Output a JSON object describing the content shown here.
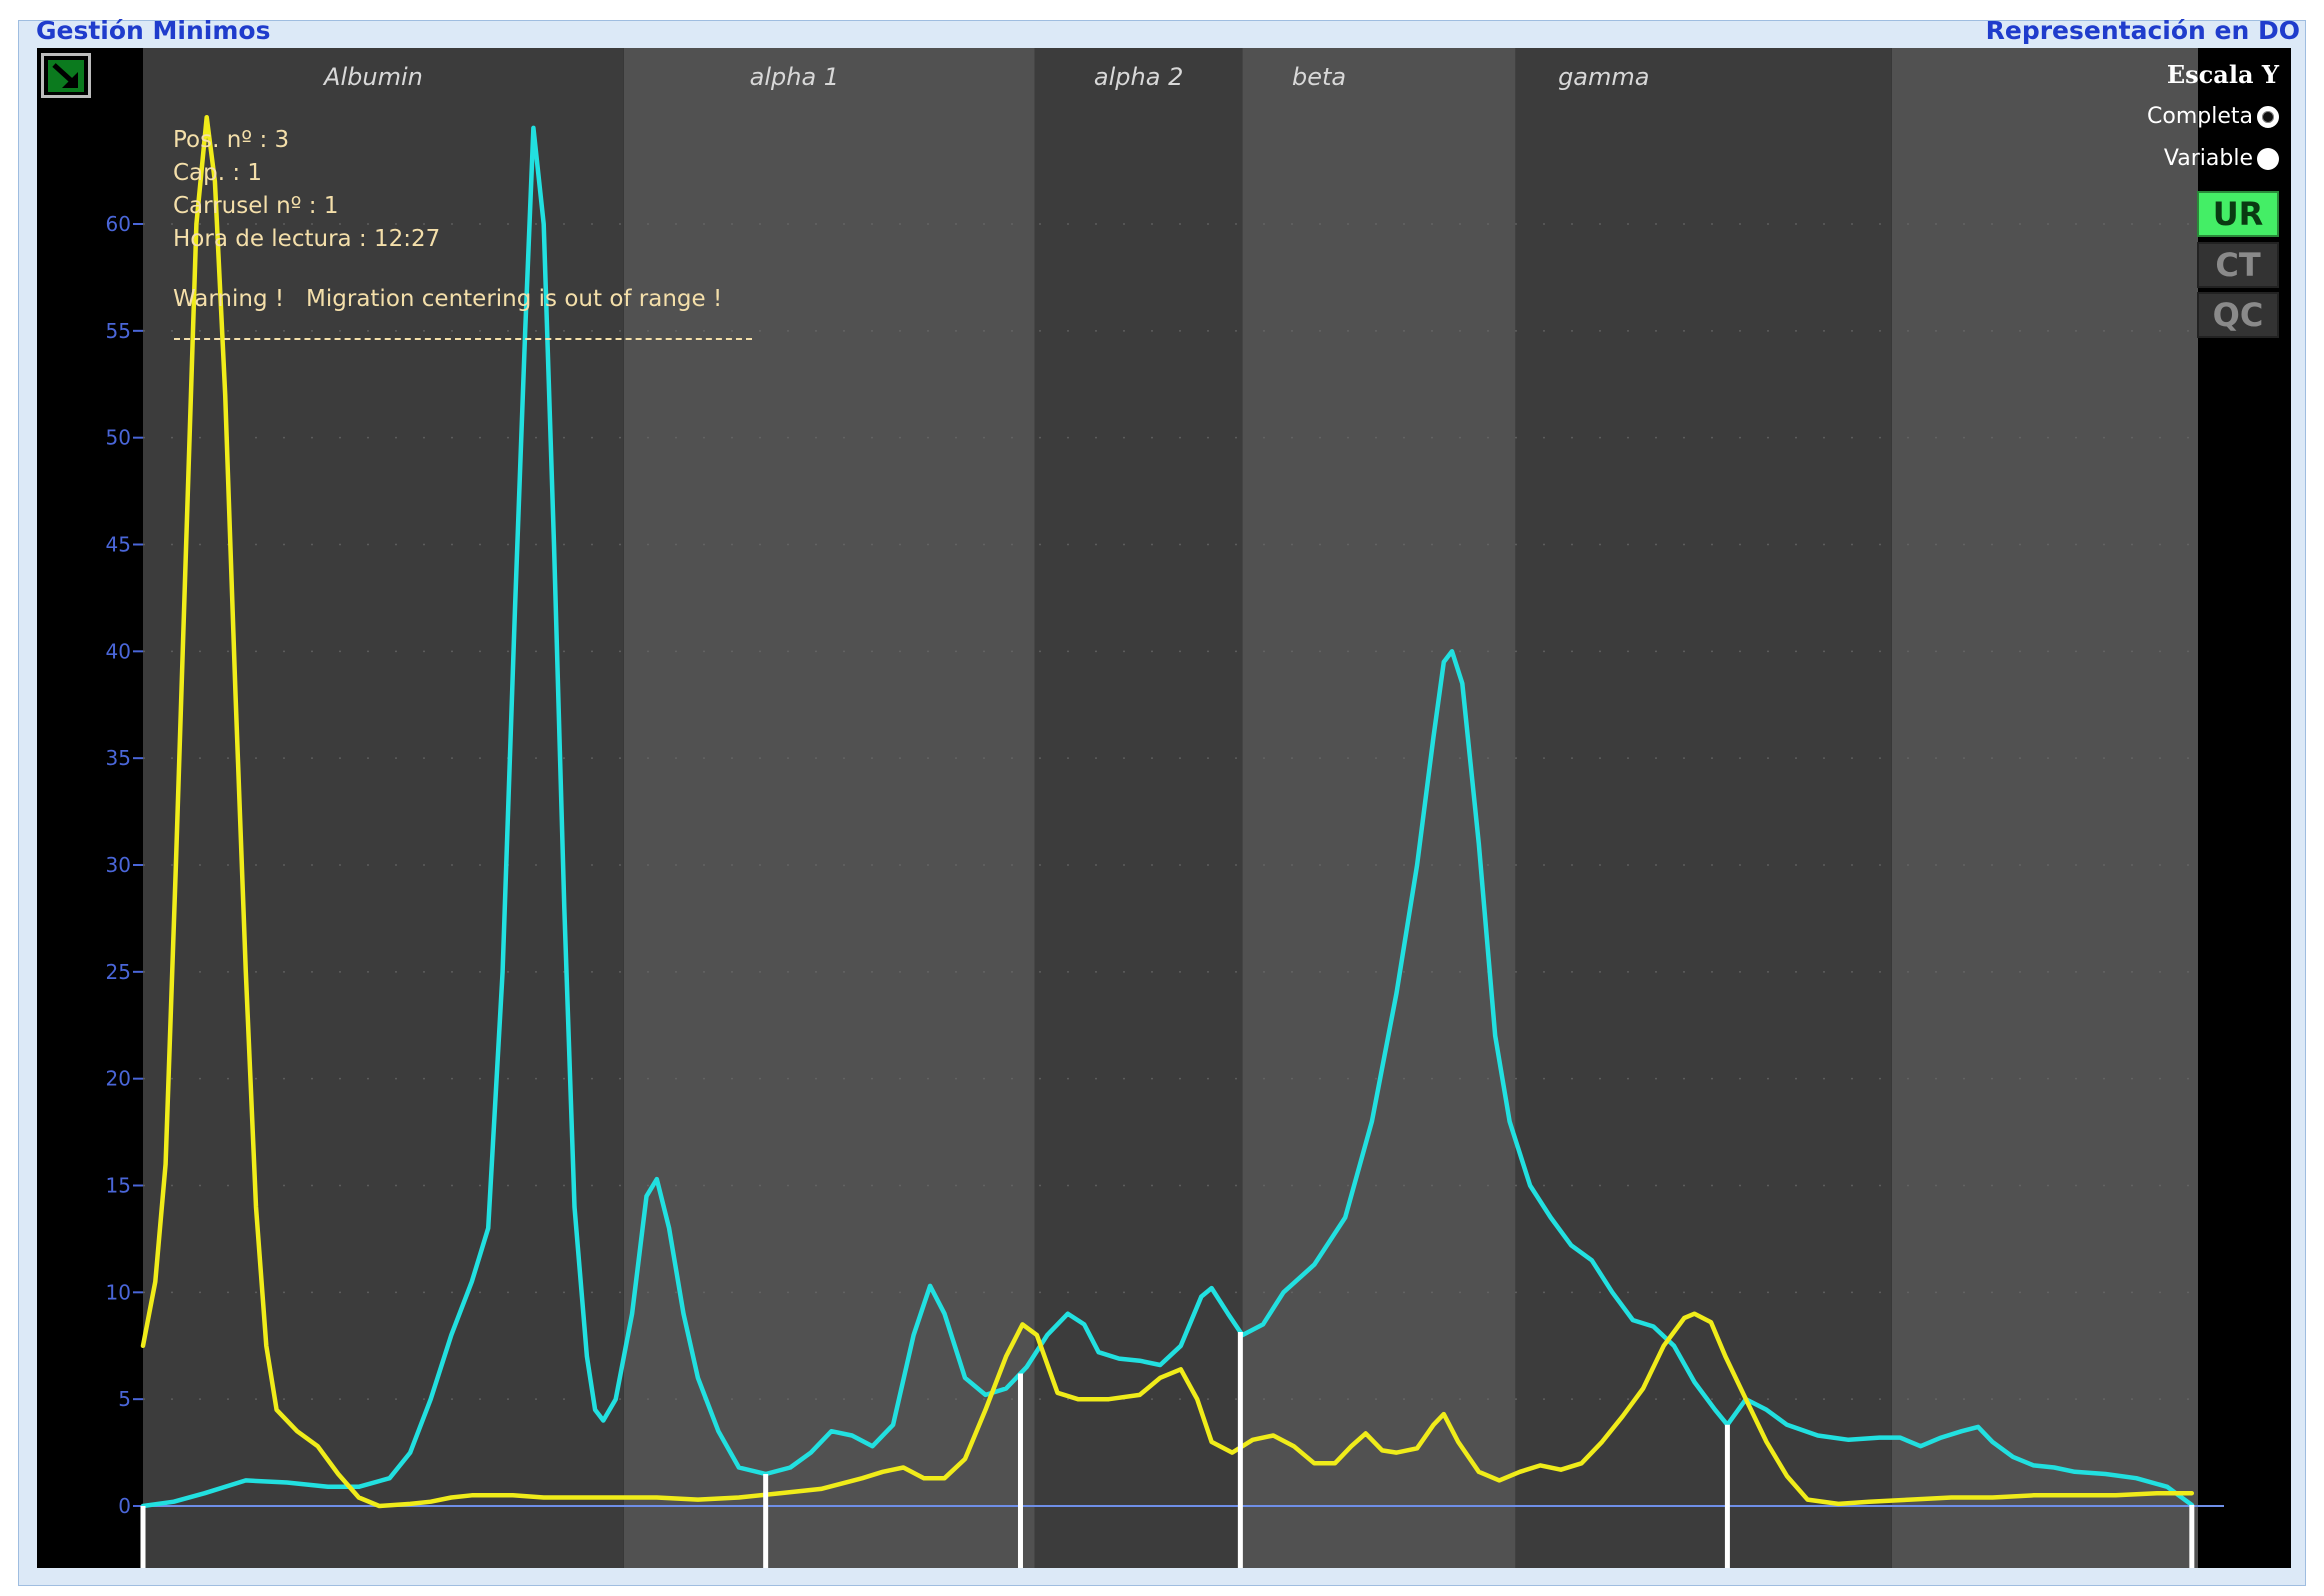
{
  "header": {
    "left_title": "Gestión Minimos",
    "right_title": "Representación en DO"
  },
  "info": {
    "pos": "Pos. nº : 3",
    "cap": "Cap. : 1",
    "carrusel": "Carrusel nº : 1",
    "hora": "Hora de lectura : 12:27",
    "warning": "Warning !   Migration centering is out of range !"
  },
  "scale_panel": {
    "title": "Escala Y",
    "options": [
      {
        "label": "Completa",
        "selected": true
      },
      {
        "label": "Variable",
        "selected": false
      }
    ]
  },
  "mode_buttons": [
    {
      "label": "UR",
      "active": true,
      "color": "#44ee66"
    },
    {
      "label": "CT",
      "active": false,
      "color": "#333333"
    },
    {
      "label": "QC",
      "active": false,
      "color": "#333333"
    }
  ],
  "colors": {
    "background": "#000000",
    "band_dark": "#3c3c3c",
    "band_light": "#515151",
    "series_cyan": "#22e0e0",
    "series_yellow": "#f0ec1a",
    "axis_text": "#4a66d8",
    "baseline": "#6f8fe8",
    "fraction_marker": "#ffffff",
    "header_text": "#1f3ccc"
  },
  "chart_data": {
    "type": "line",
    "ylabel": "",
    "xlabel": "",
    "xlim": [
      0,
      100
    ],
    "ylim": [
      0,
      65
    ],
    "yticks": [
      0,
      5,
      10,
      15,
      20,
      25,
      30,
      35,
      40,
      45,
      50,
      55,
      60
    ],
    "ytick_labels": [
      "0",
      "5",
      "10",
      "15",
      "20",
      "25",
      "30",
      "35",
      "40",
      "45",
      "50",
      "55",
      "60"
    ],
    "bands": [
      {
        "label": "Albumin",
        "x0": 0,
        "x1": 23.4,
        "shade": "dark"
      },
      {
        "label": "alpha 1",
        "x0": 23.4,
        "x1": 43.4,
        "shade": "light"
      },
      {
        "label": "alpha 2",
        "x0": 43.4,
        "x1": 53.5,
        "shade": "dark"
      },
      {
        "label": "beta",
        "x0": 53.5,
        "x1": 66.8,
        "shade": "light"
      },
      {
        "label": "gamma",
        "x0": 66.8,
        "x1": 85.1,
        "shade": "dark"
      },
      {
        "label": "",
        "x0": 85.1,
        "x1": 100,
        "shade": "light"
      }
    ],
    "fraction_separators": [
      0,
      30.3,
      42.7,
      53.4,
      77.1,
      99.7
    ],
    "series": [
      {
        "color": "#22e0e0",
        "points": [
          [
            0,
            0
          ],
          [
            1.5,
            0.2
          ],
          [
            3,
            0.6
          ],
          [
            5,
            1.2
          ],
          [
            7,
            1.1
          ],
          [
            9,
            0.9
          ],
          [
            10.5,
            0.9
          ],
          [
            12,
            1.3
          ],
          [
            13,
            2.5
          ],
          [
            14,
            5
          ],
          [
            15,
            8
          ],
          [
            16,
            10.5
          ],
          [
            16.8,
            13
          ],
          [
            17.5,
            25
          ],
          [
            18.1,
            42
          ],
          [
            18.6,
            55
          ],
          [
            19,
            64.5
          ],
          [
            19.5,
            60
          ],
          [
            20,
            45
          ],
          [
            20.5,
            28
          ],
          [
            21,
            14
          ],
          [
            21.6,
            7
          ],
          [
            22,
            4.5
          ],
          [
            22.4,
            4
          ],
          [
            23,
            5
          ],
          [
            23.8,
            9
          ],
          [
            24.5,
            14.5
          ],
          [
            25,
            15.3
          ],
          [
            25.6,
            13
          ],
          [
            26.3,
            9
          ],
          [
            27,
            6
          ],
          [
            28,
            3.5
          ],
          [
            29,
            1.8
          ],
          [
            30.3,
            1.5
          ],
          [
            31.5,
            1.8
          ],
          [
            32.5,
            2.5
          ],
          [
            33.5,
            3.5
          ],
          [
            34.5,
            3.3
          ],
          [
            35.5,
            2.8
          ],
          [
            36.5,
            3.8
          ],
          [
            37.5,
            8
          ],
          [
            38.3,
            10.3
          ],
          [
            39,
            9
          ],
          [
            40,
            6
          ],
          [
            41,
            5.2
          ],
          [
            42,
            5.5
          ],
          [
            43,
            6.5
          ],
          [
            44,
            8
          ],
          [
            45,
            9
          ],
          [
            45.8,
            8.5
          ],
          [
            46.5,
            7.2
          ],
          [
            47.5,
            6.9
          ],
          [
            48.5,
            6.8
          ],
          [
            49.5,
            6.6
          ],
          [
            50.5,
            7.5
          ],
          [
            51.5,
            9.8
          ],
          [
            52,
            10.2
          ],
          [
            52.8,
            9
          ],
          [
            53.5,
            8
          ],
          [
            54.5,
            8.5
          ],
          [
            55.5,
            10
          ],
          [
            57,
            11.3
          ],
          [
            58.5,
            13.5
          ],
          [
            59.8,
            18
          ],
          [
            61,
            24
          ],
          [
            62,
            30
          ],
          [
            62.8,
            36
          ],
          [
            63.3,
            39.5
          ],
          [
            63.7,
            40
          ],
          [
            64.2,
            38.5
          ],
          [
            65,
            31
          ],
          [
            65.8,
            22
          ],
          [
            66.5,
            18
          ],
          [
            67.5,
            15
          ],
          [
            68.5,
            13.5
          ],
          [
            69.5,
            12.2
          ],
          [
            70.5,
            11.5
          ],
          [
            71.5,
            10
          ],
          [
            72.5,
            8.7
          ],
          [
            73.5,
            8.4
          ],
          [
            74.5,
            7.5
          ],
          [
            75.5,
            5.8
          ],
          [
            76.5,
            4.5
          ],
          [
            77.1,
            3.8
          ],
          [
            78,
            5
          ],
          [
            79,
            4.5
          ],
          [
            80,
            3.8
          ],
          [
            81.5,
            3.3
          ],
          [
            83,
            3.1
          ],
          [
            84.5,
            3.2
          ],
          [
            85.5,
            3.2
          ],
          [
            86.5,
            2.8
          ],
          [
            87.5,
            3.2
          ],
          [
            88.5,
            3.5
          ],
          [
            89.3,
            3.7
          ],
          [
            90,
            3
          ],
          [
            91,
            2.3
          ],
          [
            92,
            1.9
          ],
          [
            93,
            1.8
          ],
          [
            94,
            1.6
          ],
          [
            95.5,
            1.5
          ],
          [
            97,
            1.3
          ],
          [
            98.5,
            0.9
          ],
          [
            99.7,
            0.05
          ]
        ]
      },
      {
        "color": "#f0ec1a",
        "points": [
          [
            0,
            7.5
          ],
          [
            0.6,
            10.5
          ],
          [
            1.1,
            16
          ],
          [
            1.6,
            30
          ],
          [
            2.2,
            48
          ],
          [
            2.6,
            60
          ],
          [
            3.1,
            65
          ],
          [
            3.5,
            62
          ],
          [
            4,
            52
          ],
          [
            4.5,
            38
          ],
          [
            5,
            25
          ],
          [
            5.5,
            14
          ],
          [
            6,
            7.5
          ],
          [
            6.5,
            4.5
          ],
          [
            7.5,
            3.5
          ],
          [
            8.5,
            2.8
          ],
          [
            9.5,
            1.5
          ],
          [
            10.5,
            0.4
          ],
          [
            11.5,
            0
          ],
          [
            13,
            0.1
          ],
          [
            14,
            0.2
          ],
          [
            15,
            0.4
          ],
          [
            16,
            0.5
          ],
          [
            18,
            0.5
          ],
          [
            19.5,
            0.4
          ],
          [
            21,
            0.4
          ],
          [
            23,
            0.4
          ],
          [
            25,
            0.4
          ],
          [
            27,
            0.3
          ],
          [
            29,
            0.4
          ],
          [
            31,
            0.6
          ],
          [
            33,
            0.8
          ],
          [
            35,
            1.3
          ],
          [
            36,
            1.6
          ],
          [
            37,
            1.8
          ],
          [
            38,
            1.3
          ],
          [
            39,
            1.3
          ],
          [
            40,
            2.2
          ],
          [
            41,
            4.5
          ],
          [
            42,
            7
          ],
          [
            42.8,
            8.5
          ],
          [
            43.5,
            8
          ],
          [
            44.5,
            5.3
          ],
          [
            45.5,
            5
          ],
          [
            47,
            5
          ],
          [
            48.5,
            5.2
          ],
          [
            49.5,
            6
          ],
          [
            50.5,
            6.4
          ],
          [
            51.3,
            5
          ],
          [
            52,
            3
          ],
          [
            53,
            2.5
          ],
          [
            54,
            3.1
          ],
          [
            55,
            3.3
          ],
          [
            56,
            2.8
          ],
          [
            57,
            2
          ],
          [
            58,
            2
          ],
          [
            58.8,
            2.8
          ],
          [
            59.5,
            3.4
          ],
          [
            60.3,
            2.6
          ],
          [
            61,
            2.5
          ],
          [
            62,
            2.7
          ],
          [
            62.8,
            3.8
          ],
          [
            63.3,
            4.3
          ],
          [
            64,
            3
          ],
          [
            65,
            1.6
          ],
          [
            66,
            1.2
          ],
          [
            67,
            1.6
          ],
          [
            68,
            1.9
          ],
          [
            69,
            1.7
          ],
          [
            70,
            2
          ],
          [
            71,
            3
          ],
          [
            72,
            4.2
          ],
          [
            73,
            5.5
          ],
          [
            74,
            7.5
          ],
          [
            75,
            8.8
          ],
          [
            75.5,
            9
          ],
          [
            76.3,
            8.6
          ],
          [
            77,
            7
          ],
          [
            78,
            5
          ],
          [
            79,
            3
          ],
          [
            80,
            1.4
          ],
          [
            81,
            0.3
          ],
          [
            82.5,
            0.1
          ],
          [
            84,
            0.2
          ],
          [
            86,
            0.3
          ],
          [
            88,
            0.4
          ],
          [
            90,
            0.4
          ],
          [
            92,
            0.5
          ],
          [
            94,
            0.5
          ],
          [
            96,
            0.5
          ],
          [
            98,
            0.6
          ],
          [
            99.7,
            0.6
          ]
        ]
      }
    ]
  }
}
